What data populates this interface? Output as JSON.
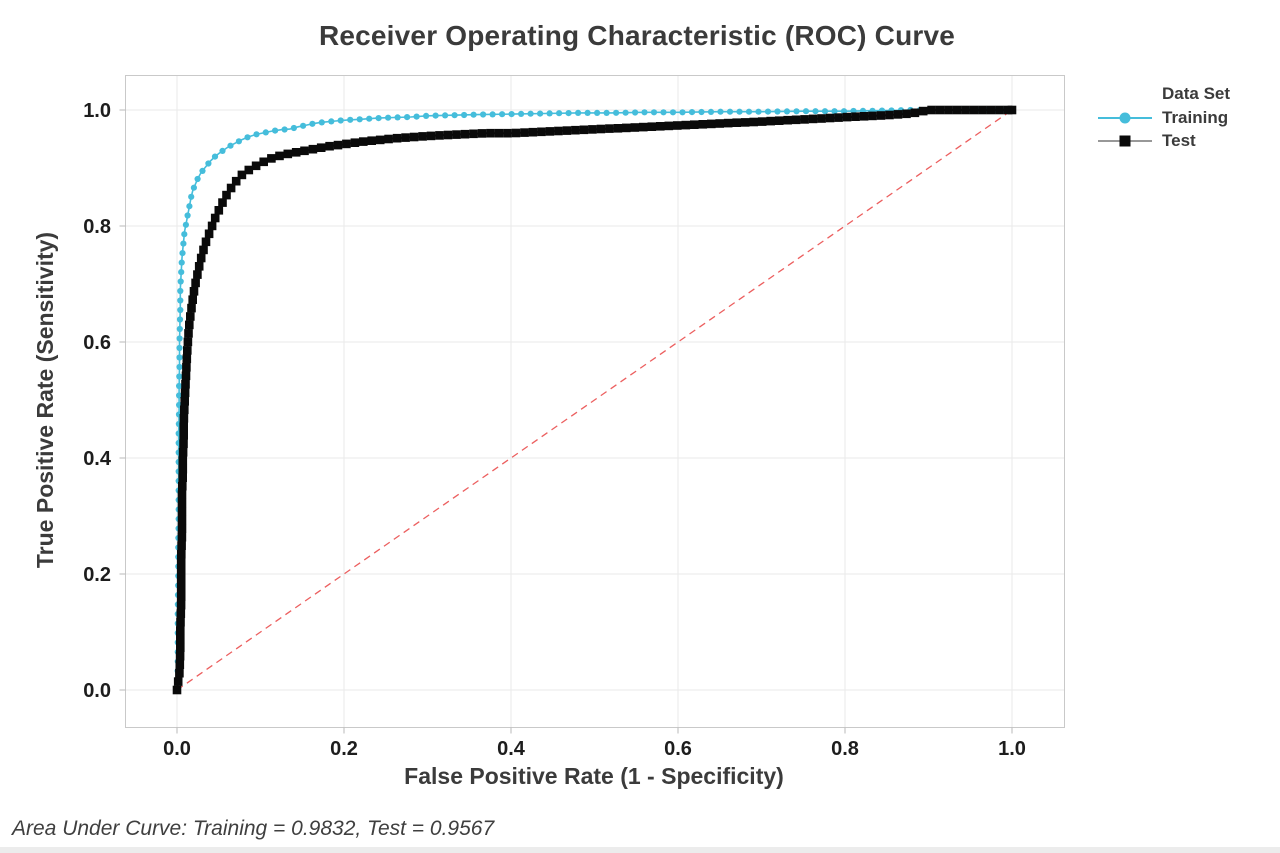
{
  "footer": {
    "text": "Area Under Curve: Training = 0.9832, Test = 0.9567"
  },
  "chart_data": {
    "type": "line",
    "title": "Receiver Operating Characteristic (ROC) Curve",
    "xlabel": "False Positive Rate (1 - Specificity)",
    "ylabel": "True Positive Rate (Sensitivity)",
    "legend_title": "Data Set",
    "legend_position": "right",
    "grid": true,
    "xlim": [
      0,
      1
    ],
    "ylim": [
      0,
      1
    ],
    "xticks": [
      "0.0",
      "0.2",
      "0.4",
      "0.6",
      "0.8",
      "1.0"
    ],
    "yticks": [
      "0.0",
      "0.2",
      "0.4",
      "0.6",
      "0.8",
      "1.0"
    ],
    "xtick_values": [
      0,
      0.2,
      0.4,
      0.6,
      0.8,
      1.0
    ],
    "ytick_values": [
      0,
      0.2,
      0.4,
      0.6,
      0.8,
      1.0
    ],
    "colors": {
      "grid": "#eaeaea",
      "frame": "#c9c9c9",
      "tick": "#b9b9b9",
      "tick_label": "#1d1d1d",
      "reference": "#ec5f5f"
    },
    "reference_line": {
      "style": "dashed",
      "from": [
        0,
        0
      ],
      "to": [
        1,
        1
      ],
      "label": ""
    },
    "series": [
      {
        "name": "Training",
        "marker": "circle",
        "color": "#45bddb",
        "auc": 0.9832,
        "points": [
          [
            0,
            0
          ],
          [
            0.001,
            0.04
          ],
          [
            0.001,
            0.09
          ],
          [
            0.001,
            0.14
          ],
          [
            0.0015,
            0.19
          ],
          [
            0.0015,
            0.24
          ],
          [
            0.002,
            0.29
          ],
          [
            0.002,
            0.34
          ],
          [
            0.002,
            0.39
          ],
          [
            0.002,
            0.44
          ],
          [
            0.0025,
            0.48
          ],
          [
            0.0025,
            0.52
          ],
          [
            0.003,
            0.56
          ],
          [
            0.003,
            0.6
          ],
          [
            0.0035,
            0.63
          ],
          [
            0.004,
            0.66
          ],
          [
            0.004,
            0.69
          ],
          [
            0.005,
            0.72
          ],
          [
            0.006,
            0.745
          ],
          [
            0.007,
            0.76
          ],
          [
            0.008,
            0.775
          ],
          [
            0.009,
            0.79
          ],
          [
            0.011,
            0.805
          ],
          [
            0.013,
            0.82
          ],
          [
            0.015,
            0.835
          ],
          [
            0.017,
            0.85
          ],
          [
            0.019,
            0.862
          ],
          [
            0.022,
            0.872
          ],
          [
            0.025,
            0.882
          ],
          [
            0.028,
            0.89
          ],
          [
            0.032,
            0.898
          ],
          [
            0.036,
            0.905
          ],
          [
            0.04,
            0.912
          ],
          [
            0.045,
            0.919
          ],
          [
            0.05,
            0.925
          ],
          [
            0.056,
            0.931
          ],
          [
            0.062,
            0.937
          ],
          [
            0.07,
            0.943
          ],
          [
            0.078,
            0.949
          ],
          [
            0.086,
            0.954
          ],
          [
            0.095,
            0.958
          ],
          [
            0.105,
            0.961
          ],
          [
            0.115,
            0.964
          ],
          [
            0.125,
            0.966
          ],
          [
            0.135,
            0.967
          ],
          [
            0.145,
            0.971
          ],
          [
            0.155,
            0.974
          ],
          [
            0.165,
            0.977
          ],
          [
            0.175,
            0.979
          ],
          [
            0.19,
            0.981
          ],
          [
            0.205,
            0.983
          ],
          [
            0.22,
            0.984
          ],
          [
            0.24,
            0.986
          ],
          [
            0.26,
            0.987
          ],
          [
            0.28,
            0.988
          ],
          [
            0.3,
            0.99
          ],
          [
            0.33,
            0.991
          ],
          [
            0.36,
            0.992
          ],
          [
            0.4,
            0.993
          ],
          [
            0.44,
            0.994
          ],
          [
            0.48,
            0.995
          ],
          [
            0.52,
            0.995
          ],
          [
            0.56,
            0.996
          ],
          [
            0.6,
            0.996
          ],
          [
            0.65,
            0.997
          ],
          [
            0.7,
            0.997
          ],
          [
            0.75,
            0.998
          ],
          [
            0.8,
            0.998
          ],
          [
            0.85,
            0.999
          ],
          [
            0.88,
            1
          ],
          [
            1,
            1
          ]
        ]
      },
      {
        "name": "Test",
        "marker": "square",
        "color": "#0a0a0a",
        "auc": 0.9567,
        "points": [
          [
            0,
            0
          ],
          [
            0.003,
            0.03
          ],
          [
            0.004,
            0.07
          ],
          [
            0.004,
            0.11
          ],
          [
            0.005,
            0.15
          ],
          [
            0.005,
            0.19
          ],
          [
            0.005,
            0.23
          ],
          [
            0.006,
            0.27
          ],
          [
            0.006,
            0.31
          ],
          [
            0.006,
            0.34
          ],
          [
            0.007,
            0.37
          ],
          [
            0.007,
            0.4
          ],
          [
            0.008,
            0.43
          ],
          [
            0.008,
            0.46
          ],
          [
            0.009,
            0.49
          ],
          [
            0.01,
            0.52
          ],
          [
            0.011,
            0.55
          ],
          [
            0.012,
            0.58
          ],
          [
            0.013,
            0.6
          ],
          [
            0.014,
            0.62
          ],
          [
            0.016,
            0.645
          ],
          [
            0.018,
            0.665
          ],
          [
            0.02,
            0.685
          ],
          [
            0.022,
            0.7
          ],
          [
            0.025,
            0.72
          ],
          [
            0.028,
            0.74
          ],
          [
            0.031,
            0.755
          ],
          [
            0.034,
            0.77
          ],
          [
            0.038,
            0.785
          ],
          [
            0.042,
            0.8
          ],
          [
            0.046,
            0.815
          ],
          [
            0.051,
            0.83
          ],
          [
            0.056,
            0.845
          ],
          [
            0.062,
            0.86
          ],
          [
            0.068,
            0.872
          ],
          [
            0.075,
            0.885
          ],
          [
            0.082,
            0.893
          ],
          [
            0.09,
            0.9
          ],
          [
            0.1,
            0.908
          ],
          [
            0.11,
            0.915
          ],
          [
            0.12,
            0.92
          ],
          [
            0.135,
            0.925
          ],
          [
            0.15,
            0.929
          ],
          [
            0.165,
            0.933
          ],
          [
            0.18,
            0.937
          ],
          [
            0.2,
            0.941
          ],
          [
            0.22,
            0.945
          ],
          [
            0.24,
            0.948
          ],
          [
            0.26,
            0.951
          ],
          [
            0.28,
            0.953
          ],
          [
            0.31,
            0.956
          ],
          [
            0.34,
            0.958
          ],
          [
            0.37,
            0.96
          ],
          [
            0.4,
            0.96
          ],
          [
            0.43,
            0.962
          ],
          [
            0.46,
            0.964
          ],
          [
            0.49,
            0.966
          ],
          [
            0.52,
            0.968
          ],
          [
            0.55,
            0.97
          ],
          [
            0.58,
            0.972
          ],
          [
            0.61,
            0.974
          ],
          [
            0.64,
            0.976
          ],
          [
            0.67,
            0.978
          ],
          [
            0.7,
            0.98
          ],
          [
            0.74,
            0.983
          ],
          [
            0.78,
            0.986
          ],
          [
            0.82,
            0.989
          ],
          [
            0.85,
            0.991
          ],
          [
            0.88,
            0.994
          ],
          [
            0.9,
            1
          ],
          [
            1,
            1
          ]
        ]
      }
    ]
  }
}
